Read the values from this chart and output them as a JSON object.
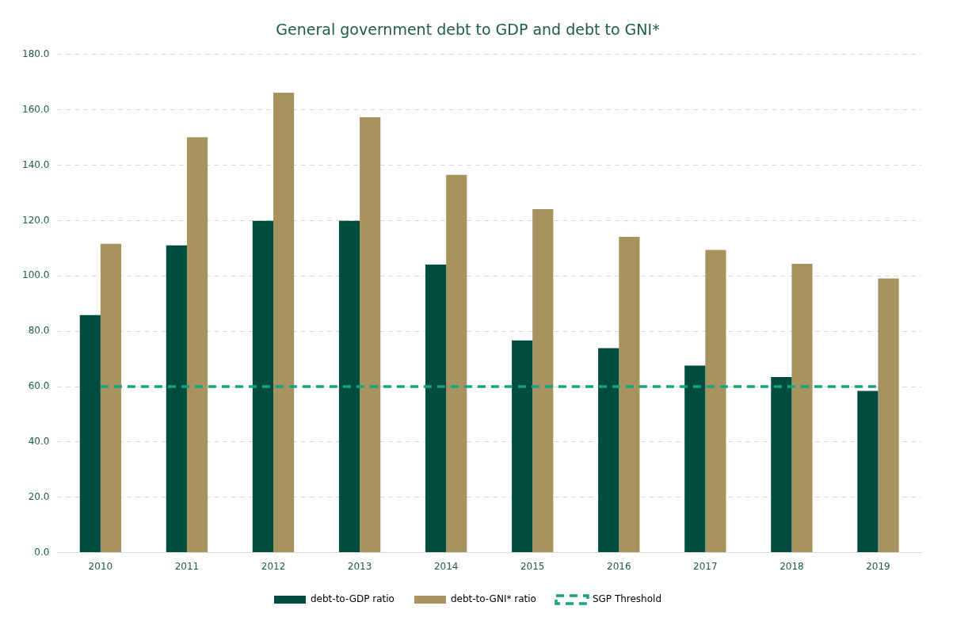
{
  "chart_data": {
    "type": "bar",
    "title": "General government debt to GDP and debt to GNI*",
    "categories": [
      "2010",
      "2011",
      "2012",
      "2013",
      "2014",
      "2015",
      "2016",
      "2017",
      "2018",
      "2019"
    ],
    "series": [
      {
        "name": "debt-to-GDP ratio",
        "color": "#004d40",
        "values": [
          85.8,
          111.0,
          119.9,
          119.9,
          104.1,
          76.7,
          73.9,
          67.6,
          63.4,
          58.4
        ]
      },
      {
        "name": "debt-to-GNI* ratio",
        "color": "#a69360",
        "values": [
          111.6,
          150.1,
          166.2,
          157.3,
          136.5,
          124.1,
          114.1,
          109.4,
          104.4,
          99.1
        ]
      },
      {
        "name": "SGP Threshold",
        "type": "line",
        "color": "#17a37e",
        "line_style": "dashed",
        "marker": "none",
        "values": [
          60,
          60,
          60,
          60,
          60,
          60,
          60,
          60,
          60,
          60
        ]
      }
    ],
    "ylim": [
      0,
      180
    ],
    "yticks": [
      {
        "value": 0,
        "label": "0.0"
      },
      {
        "value": 20,
        "label": "20.0"
      },
      {
        "value": 40,
        "label": "40.0"
      },
      {
        "value": 60,
        "label": "60.0"
      },
      {
        "value": 80,
        "label": "80.0"
      },
      {
        "value": 100,
        "label": "100.0"
      },
      {
        "value": 120,
        "label": "120.0"
      },
      {
        "value": 140,
        "label": "140.0"
      },
      {
        "value": 160,
        "label": "160.0"
      },
      {
        "value": 180,
        "label": "180.0"
      }
    ],
    "grid": "y",
    "legend": "bottom"
  }
}
